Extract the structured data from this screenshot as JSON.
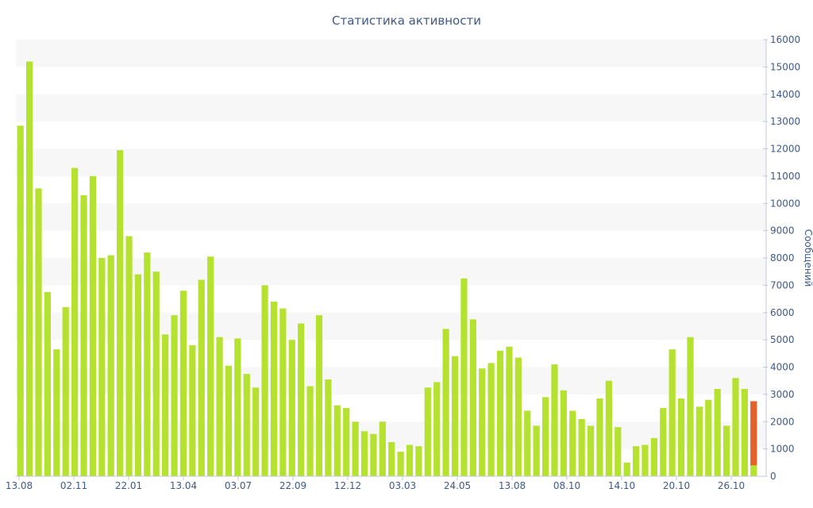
{
  "chart_data": {
    "type": "bar",
    "title": "Статистика активности",
    "ylabel": "Сообщений",
    "xlabel": "",
    "ylim": [
      0,
      16000
    ],
    "y_ticks": [
      "0",
      "1000",
      "2000",
      "3000",
      "4000",
      "5000",
      "6000",
      "7000",
      "8000",
      "9000",
      "10000",
      "11000",
      "12000",
      "13000",
      "14000",
      "15000",
      "16000"
    ],
    "x_tick_labels": [
      "13.08",
      "02.11",
      "22.01",
      "13.04",
      "03.07",
      "22.09",
      "12.12",
      "03.03",
      "24.05",
      "13.08",
      "08.10",
      "14.10",
      "20.10",
      "26.10"
    ],
    "grid": "horizontal alternating bands",
    "colors": {
      "bar": "#b5e22f",
      "highlight": "#e2622c",
      "text": "#3e5a8a",
      "band": "#f7f7f7"
    },
    "values": [
      12850,
      15200,
      10550,
      6750,
      4650,
      6200,
      11300,
      10300,
      11000,
      8000,
      8100,
      11950,
      8800,
      7400,
      8200,
      7500,
      5200,
      5900,
      6800,
      4800,
      7200,
      8050,
      5100,
      4050,
      5050,
      3750,
      3250,
      7000,
      6400,
      6150,
      5000,
      5600,
      3300,
      5900,
      3550,
      2600,
      2500,
      2000,
      1650,
      1550,
      2000,
      1250,
      900,
      1150,
      1100,
      3250,
      3450,
      5400,
      4400,
      7250,
      5750,
      3950,
      4150,
      4600,
      4750,
      4350,
      2400,
      1850,
      2900,
      4100,
      3150,
      2400,
      2100,
      1850,
      2850,
      3500,
      1800,
      500,
      1100,
      1150,
      1400,
      2500,
      4650,
      2850,
      5100,
      2550,
      2800,
      3200,
      1850,
      3600,
      3200,
      2750
    ],
    "highlight_index": 81
  }
}
